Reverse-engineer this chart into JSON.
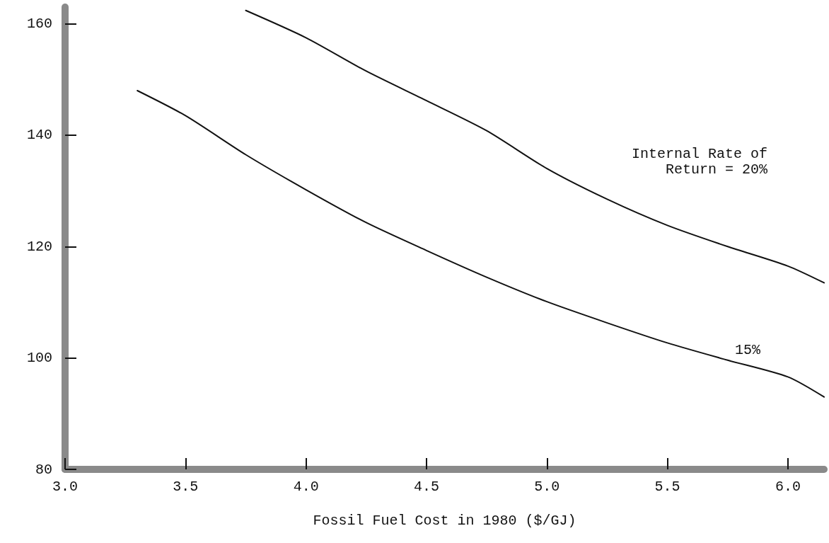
{
  "chart_data": {
    "type": "line",
    "xlabel": "Fossil Fuel Cost in 1980 ($/GJ)",
    "xlim": [
      3.0,
      6.15
    ],
    "xticks": [
      {
        "value": 3,
        "label": "3.0"
      },
      3.5,
      {
        "value": 4,
        "label": "4.0"
      },
      4.5,
      {
        "value": 5,
        "label": "5.0"
      },
      5.5,
      {
        "value": 6,
        "label": "6.0"
      }
    ],
    "ylim": [
      80,
      163
    ],
    "yticks": [
      80,
      100,
      120,
      140,
      160
    ],
    "grid": false,
    "marker": "none",
    "line_style": "solid",
    "series": [
      {
        "color": "#111111",
        "x": [
          3.75,
          4.0,
          4.25,
          4.5,
          4.75,
          5.0,
          5.25,
          5.5,
          5.75,
          6.0,
          6.15
        ],
        "values": [
          162.4,
          157.5,
          151.5,
          146.2,
          140.8,
          134,
          128.5,
          123.8,
          120,
          116.5,
          113.5
        ]
      },
      {
        "color": "#111111",
        "x": [
          3.3,
          3.5,
          3.75,
          4.0,
          4.25,
          4.5,
          4.75,
          5.0,
          5.25,
          5.5,
          5.75,
          6.0,
          6.15
        ],
        "values": [
          148,
          143.5,
          136.5,
          130.2,
          124.3,
          119.3,
          114.5,
          110.1,
          106.3,
          102.7,
          99.6,
          96.6,
          93
        ]
      }
    ],
    "annotations": [
      "Internal Rate of\nReturn = 20%",
      "15%"
    ]
  }
}
